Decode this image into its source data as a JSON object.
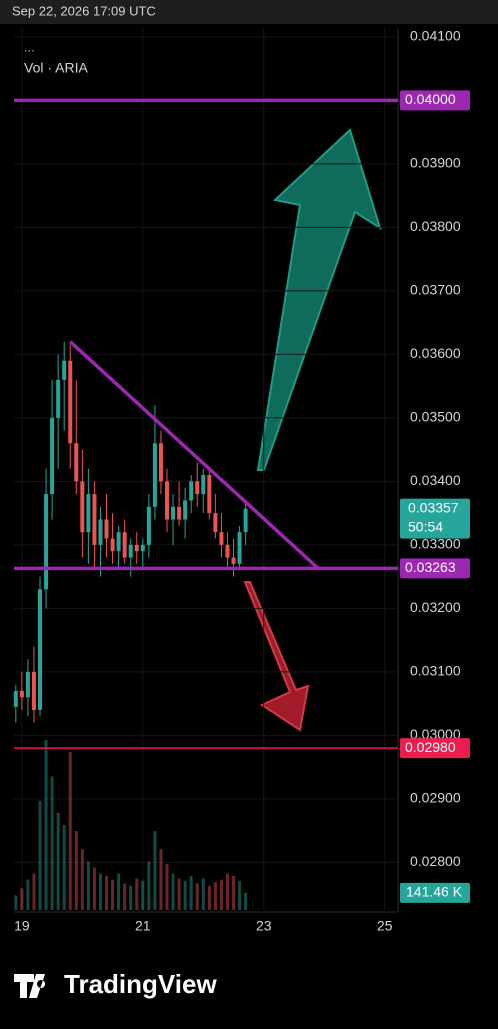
{
  "header": {
    "timestamp": "Sep 22, 2026 17:09 UTC",
    "menu": "...",
    "volume_legend": "Vol · ARIA"
  },
  "chart_data": {
    "type": "candlestick",
    "x": [
      18.9,
      19.0,
      19.1,
      19.2,
      19.3,
      19.4,
      19.5,
      19.6,
      19.7,
      19.8,
      19.9,
      20.0,
      20.1,
      20.2,
      20.3,
      20.4,
      20.5,
      20.6,
      20.7,
      20.8,
      20.9,
      21.0,
      21.1,
      21.2,
      21.3,
      21.4,
      21.5,
      21.6,
      21.7,
      21.8,
      21.9,
      22.0,
      22.1,
      22.2,
      22.3,
      22.4,
      22.5,
      22.6,
      22.7
    ],
    "open": [
      0.03045,
      0.0307,
      0.0306,
      0.031,
      0.0304,
      0.0323,
      0.0338,
      0.035,
      0.0356,
      0.0359,
      0.0346,
      0.034,
      0.0332,
      0.0338,
      0.033,
      0.0334,
      0.0331,
      0.0329,
      0.0332,
      0.0328,
      0.033,
      0.0329,
      0.033,
      0.0336,
      0.0346,
      0.034,
      0.0334,
      0.0336,
      0.0334,
      0.0337,
      0.034,
      0.0338,
      0.0341,
      0.0335,
      0.0332,
      0.033,
      0.0328,
      0.0327,
      0.0332
    ],
    "high": [
      0.0308,
      0.031,
      0.0312,
      0.0314,
      0.0325,
      0.0342,
      0.0356,
      0.036,
      0.0362,
      0.03615,
      0.0356,
      0.0345,
      0.0342,
      0.034,
      0.0336,
      0.0338,
      0.0335,
      0.0333,
      0.0334,
      0.0331,
      0.0332,
      0.0331,
      0.0338,
      0.0352,
      0.0348,
      0.0342,
      0.0338,
      0.034,
      0.0339,
      0.0341,
      0.0343,
      0.0342,
      0.0342,
      0.0338,
      0.0335,
      0.0332,
      0.0331,
      0.0333,
      0.0337
    ],
    "low": [
      0.0302,
      0.0304,
      0.0303,
      0.0302,
      0.0303,
      0.032,
      0.0334,
      0.0342,
      0.0348,
      0.0342,
      0.0338,
      0.0328,
      0.0327,
      0.0326,
      0.0325,
      0.0328,
      0.0327,
      0.0326,
      0.0327,
      0.0325,
      0.0327,
      0.0326,
      0.0328,
      0.0334,
      0.0338,
      0.0332,
      0.033,
      0.0333,
      0.0331,
      0.0335,
      0.0336,
      0.0335,
      0.0334,
      0.0331,
      0.0328,
      0.0326,
      0.0325,
      0.0326,
      0.033
    ],
    "close": [
      0.0307,
      0.0306,
      0.031,
      0.0304,
      0.0323,
      0.0338,
      0.035,
      0.0356,
      0.0359,
      0.0346,
      0.034,
      0.0332,
      0.0338,
      0.033,
      0.0334,
      0.0331,
      0.0329,
      0.0332,
      0.0328,
      0.033,
      0.0329,
      0.033,
      0.0336,
      0.0346,
      0.034,
      0.0334,
      0.0336,
      0.0334,
      0.0337,
      0.034,
      0.0338,
      0.0341,
      0.0335,
      0.0332,
      0.033,
      0.0328,
      0.0327,
      0.0332,
      0.03357
    ],
    "volume": [
      120,
      180,
      250,
      300,
      900,
      1400,
      1100,
      800,
      700,
      1300,
      650,
      500,
      400,
      350,
      300,
      280,
      250,
      300,
      220,
      200,
      260,
      240,
      400,
      650,
      500,
      380,
      300,
      260,
      240,
      280,
      220,
      260,
      200,
      230,
      250,
      300,
      280,
      240,
      141.46
    ],
    "up_color": "#26a69a",
    "down_color": "#ef5350",
    "xlim": [
      18.87,
      25.22
    ],
    "xticks": [
      19,
      21,
      23,
      25
    ],
    "ylim": [
      0.02725,
      0.04114
    ],
    "yticks": [
      {
        "value": 0.041,
        "label": "0.04100"
      },
      {
        "value": 0.039,
        "label": "0.03900"
      },
      {
        "value": 0.038,
        "label": "0.03800"
      },
      {
        "value": 0.037,
        "label": "0.03700"
      },
      {
        "value": 0.036,
        "label": "0.03600"
      },
      {
        "value": 0.035,
        "label": "0.03500"
      },
      {
        "value": 0.034,
        "label": "0.03400"
      },
      {
        "value": 0.033,
        "label": "0.03300"
      },
      {
        "value": 0.032,
        "label": "0.03200"
      },
      {
        "value": 0.031,
        "label": "0.03100"
      },
      {
        "value": 0.03,
        "label": "0.03000"
      },
      {
        "value": 0.029,
        "label": "0.02900"
      },
      {
        "value": 0.028,
        "label": "0.02800"
      }
    ],
    "volume_lim": [
      0,
      1400
    ],
    "levels": [
      {
        "value": 0.04,
        "label": "0.04000",
        "color": "#9c27b0"
      },
      {
        "value": 0.03263,
        "label": "0.03263",
        "color": "#9c27b0"
      },
      {
        "value": 0.0298,
        "label": "0.02980",
        "color": "#e91e4f"
      }
    ],
    "trendline": {
      "x": [
        19.8,
        23.9
      ],
      "y": [
        0.0362,
        0.03263
      ],
      "color": "#9c27b0"
    },
    "last": {
      "value": 0.03357,
      "label": "0.03357",
      "countdown": "50:54"
    },
    "volume_last": {
      "value": 141.46,
      "label": "141.46 K"
    }
  },
  "brand": "TradingView"
}
